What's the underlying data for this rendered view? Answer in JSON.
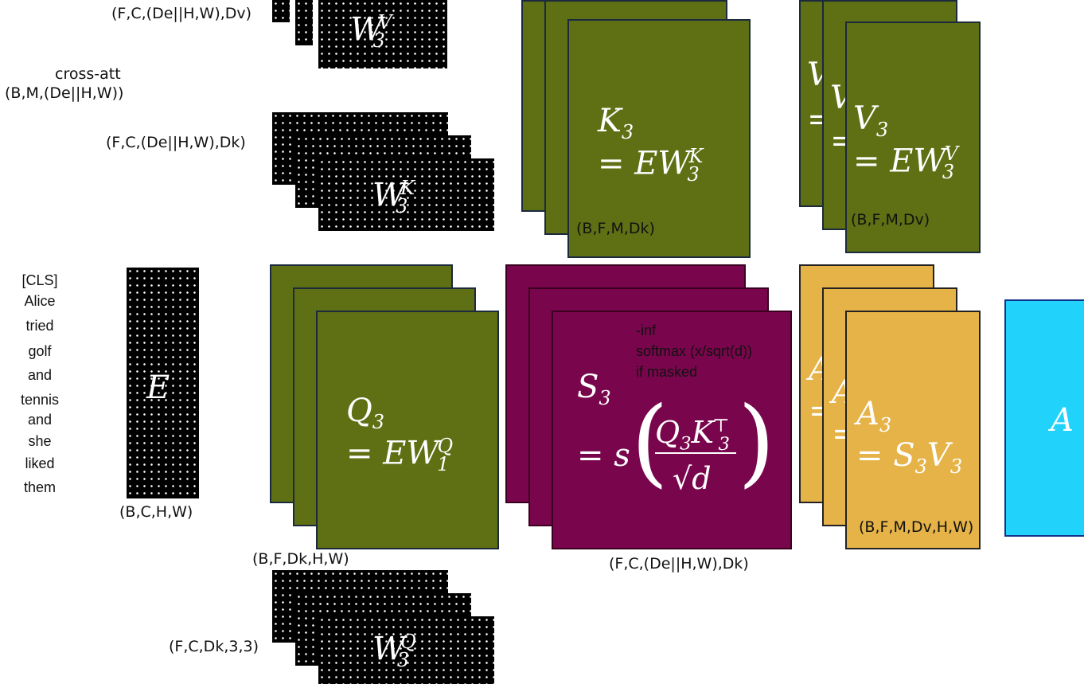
{
  "labels": {
    "wv_shape": "(F,C,(De||H,W),Dv)",
    "cross_att_title": "cross-att",
    "cross_att_shape": "(B,M,(De||H,W))",
    "wk_shape": "(F,C,(De||H,W),Dk)",
    "k_shape": "(B,F,M,Dk)",
    "v_shape": "(B,F,M,Dv)",
    "e_shape": "(B,C,H,W)",
    "q_shape": "(B,F,Dk,H,W)",
    "s_shape": "(F,C,(De||H,W),Dk)",
    "a_shape": "(B,F,M,Dv,H,W)",
    "wq_shape": "(F,C,Dk,3,3)",
    "softmax_note_1": "-inf",
    "softmax_note_2": "softmax (x/sqrt(d))",
    "softmax_note_3": "if masked"
  },
  "tokens": [
    "[CLS]",
    "Alice",
    "tried",
    "golf",
    "and",
    "tennis",
    "and",
    "she",
    "liked",
    "them"
  ],
  "math": {
    "e": "E",
    "wv": "W",
    "wv_sup": "V",
    "wv_sub": "3",
    "wk": "W",
    "wk_sup": "K",
    "wk_sub": "3",
    "wq": "W",
    "wq_sup": "Q",
    "wq_sub": "3",
    "k_lhs": "K",
    "k_sub": "3",
    "k_rhs": "= EW",
    "k_rhs_sub": "3",
    "k_rhs_sup": "K",
    "v_lhs": "V",
    "v_sub": "3",
    "v_rhs": "= EW",
    "v_rhs_sub": "3",
    "v_rhs_sup": "V",
    "q_lhs": "Q",
    "q_sub": "3",
    "q_rhs": "= EW",
    "q_rhs_sub": "1",
    "q_rhs_sup": "Q",
    "s_lhs": "S",
    "s_sub": "3",
    "s_rhs": "= s",
    "s_num": "Q",
    "s_num_sub": "3",
    "s_num2": "K",
    "s_num2_sub": "3",
    "s_num2_sup": "⊤",
    "s_den": "√d",
    "a_lhs": "A",
    "a_sub": "3",
    "a_rhs": "= S",
    "a_rhs_sub": "3",
    "a_rhs2": "V",
    "a_rhs2_sub": "3",
    "a_final": "A",
    "v_back1": "V",
    "v_back1_eq": "=",
    "v_back2": "V",
    "v_back2_eq": "=",
    "a_back1": "A",
    "a_back1_eq": "=",
    "a_back2": "A",
    "a_back2_eq": "="
  },
  "colors": {
    "weights": "#000000",
    "qkv": "#5f6f14",
    "scores": "#79064c",
    "attention_out": "#e5b347",
    "final": "#21d3fb"
  }
}
